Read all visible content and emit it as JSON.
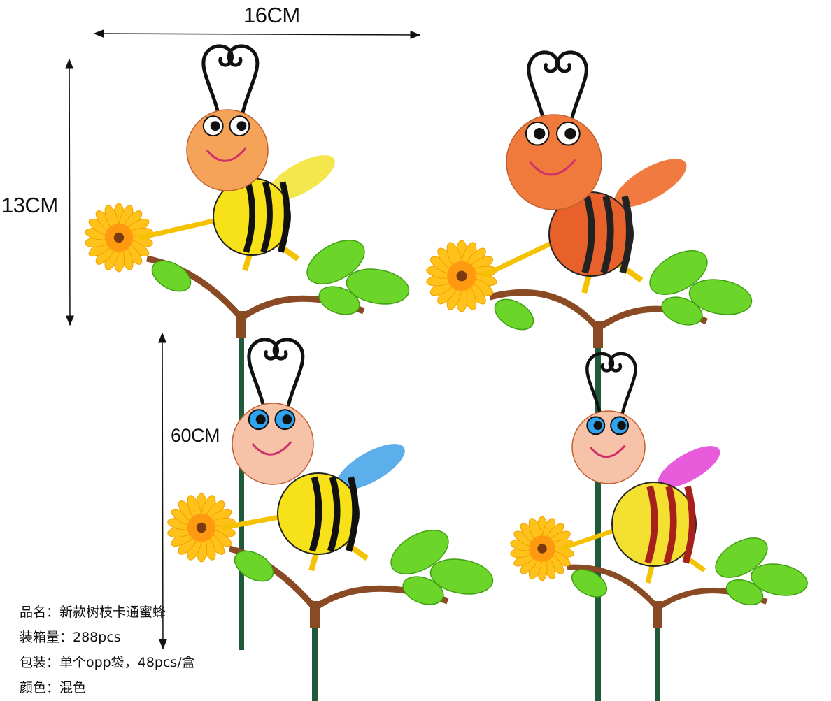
{
  "dimensions": {
    "width_label": "16CM",
    "height_label": "13CM",
    "stake_label": "60CM"
  },
  "product_info": [
    "品名：新款树枝卡通蜜蜂",
    "装箱量：288pcs",
    "包装：单个opp袋，48pcs/盒",
    "颜色：混色"
  ],
  "bees": [
    {
      "name": "yellow-bee",
      "head": "#f6a35a",
      "body": "#f7e21a",
      "stripe": "#111111",
      "wing": "#f3e43a",
      "eye": "#ffffff"
    },
    {
      "name": "orange-bee",
      "head": "#f07a3c",
      "body": "#e8602a",
      "stripe": "#222222",
      "wing": "#f06b2c",
      "eye": "#ffffff"
    },
    {
      "name": "blue-eyed-yellow-bee",
      "head": "#f6c2a8",
      "body": "#f7e21a",
      "stripe": "#111111",
      "wing": "#4aa6e8",
      "eye": "#2fa3ee"
    },
    {
      "name": "red-striped-bee",
      "head": "#f6c2a8",
      "body": "#f3e030",
      "stripe": "#a8201c",
      "wing": "#e64ad8",
      "eye": "#2fa3ee"
    }
  ],
  "colors": {
    "stem": "#1f5a3a",
    "branch": "#8a4a24",
    "leaf": "#6bd52a",
    "flower": "#ffc21a",
    "flower_center": "#7a3a10"
  }
}
